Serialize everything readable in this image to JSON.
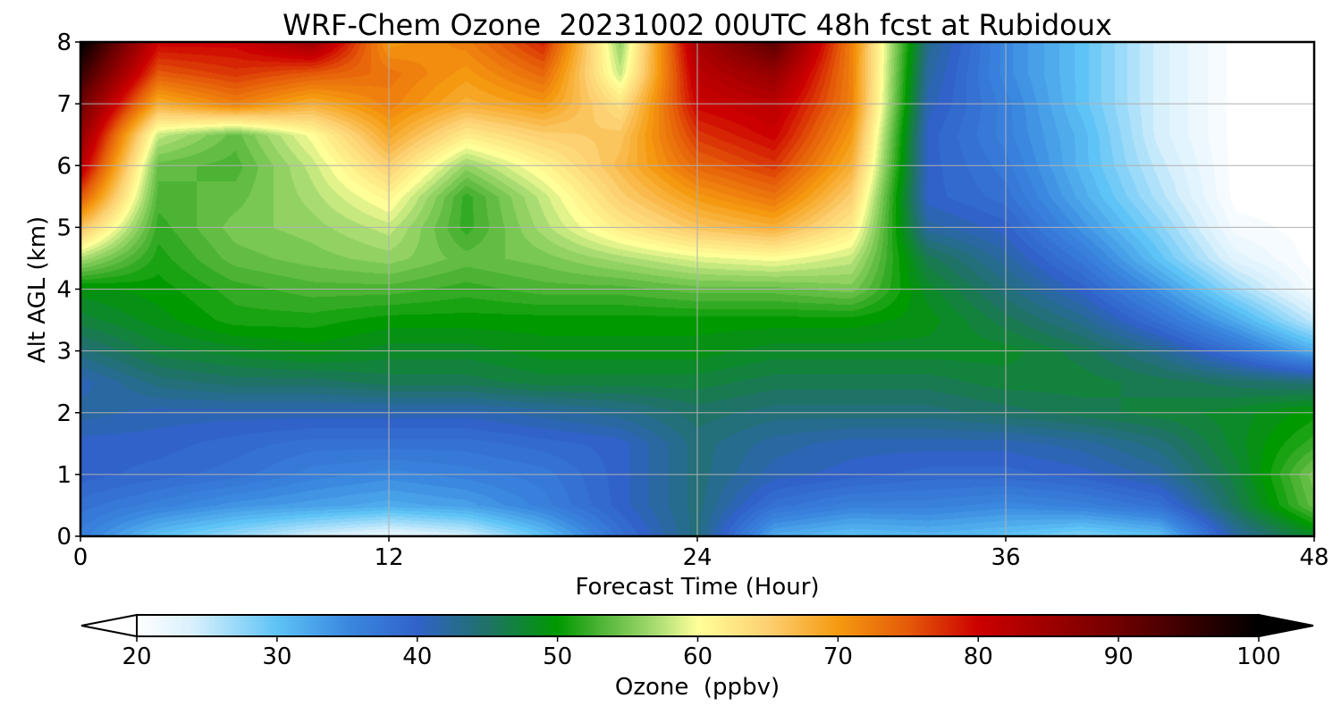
{
  "chart_data": {
    "type": "heatmap",
    "title": "WRF-Chem Ozone  20231002 00UTC 48h fcst at Rubidoux",
    "xlabel": "Forecast Time (Hour)",
    "ylabel": "Alt AGL (km)",
    "xlim": [
      0,
      48
    ],
    "ylim": [
      0,
      8
    ],
    "x_ticks": [
      "0",
      "12",
      "24",
      "36",
      "48"
    ],
    "y_ticks": [
      "0",
      "1",
      "2",
      "3",
      "4",
      "5",
      "6",
      "7",
      "8"
    ],
    "grid": true,
    "colorbar": {
      "label": "Ozone  (ppbv)",
      "range": [
        20,
        100
      ],
      "extend": "both",
      "orientation": "horizontal",
      "placement": "bottom",
      "tick_values": [
        20,
        30,
        40,
        50,
        60,
        70,
        80,
        90,
        100
      ],
      "tick_labels": [
        "20",
        "30",
        "40",
        "50",
        "60",
        "70",
        "80",
        "90",
        "100"
      ],
      "color_stops": [
        {
          "value": 20,
          "color": "#ffffff"
        },
        {
          "value": 24,
          "color": "#d8f0fc"
        },
        {
          "value": 30,
          "color": "#5ec3f6"
        },
        {
          "value": 35,
          "color": "#3a88df"
        },
        {
          "value": 40,
          "color": "#3162c9"
        },
        {
          "value": 45,
          "color": "#1f7266"
        },
        {
          "value": 50,
          "color": "#009900"
        },
        {
          "value": 53,
          "color": "#4cb335"
        },
        {
          "value": 57,
          "color": "#a8dc72"
        },
        {
          "value": 60,
          "color": "#ffff99"
        },
        {
          "value": 65,
          "color": "#fdd072"
        },
        {
          "value": 70,
          "color": "#f59a10"
        },
        {
          "value": 75,
          "color": "#e55a09"
        },
        {
          "value": 80,
          "color": "#cc0000"
        },
        {
          "value": 90,
          "color": "#700000"
        },
        {
          "value": 100,
          "color": "#000000"
        }
      ]
    },
    "hours": [
      0,
      3,
      6,
      9,
      12,
      15,
      18,
      21,
      24,
      27,
      30,
      33,
      36,
      39,
      42,
      45,
      48
    ],
    "altitudes_km": [
      0,
      0.5,
      1,
      1.5,
      2,
      2.5,
      3,
      3.5,
      4,
      4.5,
      5,
      5.5,
      6,
      6.5,
      7,
      7.5,
      8
    ],
    "values_ppbv": [
      [
        36,
        30,
        27,
        24,
        22,
        24,
        30,
        38,
        44,
        32,
        30,
        31,
        30,
        28,
        30,
        42,
        48
      ],
      [
        38,
        36,
        34,
        33,
        32,
        33,
        36,
        40,
        44,
        38,
        36,
        36,
        35,
        36,
        38,
        46,
        54
      ],
      [
        40,
        39,
        38,
        36,
        35,
        36,
        37,
        40,
        44,
        41,
        40,
        39,
        39,
        40,
        42,
        47,
        55
      ],
      [
        40,
        40,
        39,
        38,
        38,
        38,
        39,
        40,
        44,
        42,
        41,
        41,
        41,
        42,
        44,
        48,
        52
      ],
      [
        42,
        41,
        41,
        41,
        41,
        41,
        42,
        43,
        45,
        44,
        44,
        44,
        45,
        46,
        47,
        48,
        50
      ],
      [
        41,
        44,
        45,
        45,
        46,
        46,
        47,
        47,
        47,
        46,
        46,
        46,
        47,
        47,
        46,
        45,
        44
      ],
      [
        44,
        47,
        48,
        49,
        48,
        48,
        49,
        49,
        49,
        48,
        48,
        48,
        48,
        46,
        43,
        38,
        32
      ],
      [
        47,
        49,
        51,
        51,
        50,
        50,
        50,
        50,
        50,
        50,
        50,
        49,
        46,
        43,
        38,
        32,
        25
      ],
      [
        49,
        50,
        52,
        53,
        53,
        52,
        53,
        53,
        54,
        54,
        55,
        48,
        44,
        40,
        34,
        27,
        21
      ],
      [
        57,
        51,
        54,
        55,
        56,
        54,
        55,
        57,
        59,
        60,
        58,
        46,
        42,
        37,
        30,
        23,
        20
      ],
      [
        66,
        52,
        55,
        56,
        58,
        52,
        57,
        62,
        66,
        68,
        62,
        42,
        40,
        34,
        28,
        21,
        20
      ],
      [
        75,
        53,
        54,
        57,
        61,
        52,
        58,
        65,
        70,
        73,
        65,
        40,
        38,
        32,
        26,
        20,
        20
      ],
      [
        82,
        54,
        53,
        58,
        65,
        56,
        61,
        67,
        74,
        77,
        68,
        40,
        37,
        31,
        25,
        20,
        20
      ],
      [
        86,
        58,
        54,
        60,
        69,
        62,
        65,
        66,
        77,
        80,
        70,
        40,
        36,
        31,
        24,
        20,
        20
      ],
      [
        90,
        68,
        72,
        68,
        72,
        68,
        70,
        63,
        80,
        82,
        72,
        41,
        36,
        30,
        24,
        20,
        20
      ],
      [
        95,
        75,
        77,
        75,
        73,
        70,
        74,
        58,
        82,
        86,
        72,
        42,
        35,
        30,
        24,
        20,
        20
      ],
      [
        100,
        80,
        80,
        85,
        70,
        72,
        78,
        56,
        84,
        92,
        72,
        43,
        35,
        30,
        24,
        20,
        20
      ]
    ]
  }
}
